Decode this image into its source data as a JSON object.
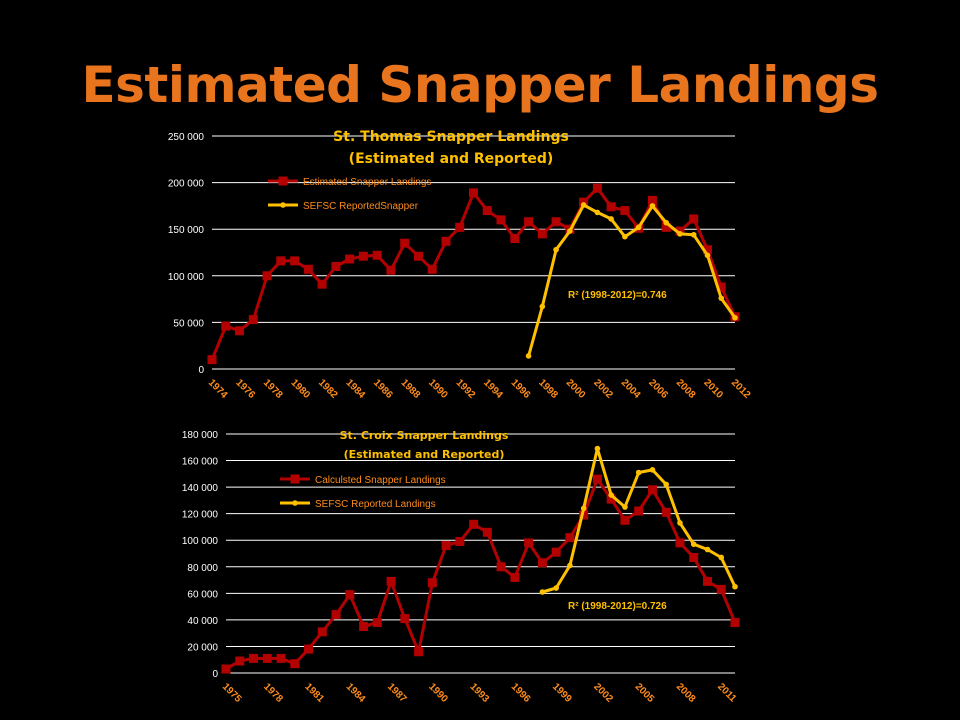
{
  "slide": {
    "title": "Estimated Snapper Landings"
  },
  "chart_data": [
    {
      "type": "line",
      "title": "St. Thomas Snapper Landings",
      "subtitle": "(Estimated and Reported)",
      "annotation": "R² (1998-2012)=0.746",
      "ylim": [
        0,
        250000
      ],
      "yticks": [
        "0",
        "50 000",
        "100 000",
        "150 000",
        "200 000",
        "250 000"
      ],
      "ytick_values": [
        0,
        50000,
        100000,
        150000,
        200000,
        250000
      ],
      "xticks": [
        "1974",
        "1976",
        "1978",
        "1980",
        "1982",
        "1984",
        "1986",
        "1988",
        "1990",
        "1992",
        "1994",
        "1996",
        "1998",
        "2000",
        "2002",
        "2004",
        "2006",
        "2008",
        "2010",
        "2012"
      ],
      "x_start": 1974,
      "x_end": 2012,
      "legend_position": "top-left",
      "grid": true,
      "series": [
        {
          "name": "Estimated Snapper Landings",
          "color": "#b30000",
          "marker": "square",
          "x": [
            1974,
            1975,
            1976,
            1977,
            1978,
            1979,
            1980,
            1981,
            1982,
            1983,
            1984,
            1985,
            1986,
            1987,
            1988,
            1989,
            1990,
            1991,
            1992,
            1993,
            1994,
            1995,
            1996,
            1997,
            1998,
            1999,
            2000,
            2001,
            2002,
            2003,
            2004,
            2005,
            2006,
            2007,
            2008,
            2009,
            2010,
            2011,
            2012
          ],
          "values": [
            10000,
            46000,
            41000,
            53000,
            100000,
            116000,
            116000,
            107000,
            91000,
            110000,
            118000,
            121000,
            122000,
            106000,
            135000,
            121000,
            107000,
            137000,
            152000,
            189000,
            170000,
            160000,
            140000,
            158000,
            145000,
            158000,
            150000,
            179000,
            194000,
            174000,
            170000,
            151000,
            181000,
            152000,
            148000,
            161000,
            128000,
            88000,
            56000
          ]
        },
        {
          "name": "SEFSC ReportedSnapper",
          "color": "#ffc000",
          "marker": "circle",
          "x": [
            1997,
            1998,
            1999,
            2000,
            2001,
            2002,
            2003,
            2004,
            2005,
            2006,
            2007,
            2008,
            2009,
            2010,
            2011,
            2012
          ],
          "values": [
            14000,
            67000,
            128000,
            148000,
            176000,
            168000,
            161000,
            142000,
            152000,
            175000,
            157000,
            145000,
            144000,
            122000,
            76000,
            55000
          ]
        }
      ]
    },
    {
      "type": "line",
      "title": "St. Croix Snapper Landings",
      "subtitle": "(Estimated and Reported)",
      "annotation": "R² (1998-2012)=0.726",
      "ylim": [
        0,
        180000
      ],
      "yticks": [
        "0",
        "20 000",
        "40 000",
        "60 000",
        "80 000",
        "100 000",
        "120 000",
        "140 000",
        "160 000",
        "180 000"
      ],
      "ytick_values": [
        0,
        20000,
        40000,
        60000,
        80000,
        100000,
        120000,
        140000,
        160000,
        180000
      ],
      "xticks": [
        "1975",
        "1978",
        "1981",
        "1984",
        "1987",
        "1990",
        "1993",
        "1996",
        "1999",
        "2002",
        "2005",
        "2008",
        "2011"
      ],
      "x_start": 1975,
      "x_end": 2012,
      "legend_position": "top-left",
      "grid": true,
      "series": [
        {
          "name": "Calculsted Snapper Landings",
          "color": "#b30000",
          "marker": "square",
          "x": [
            1975,
            1976,
            1977,
            1978,
            1979,
            1980,
            1981,
            1982,
            1983,
            1984,
            1985,
            1986,
            1987,
            1988,
            1989,
            1990,
            1991,
            1992,
            1993,
            1994,
            1995,
            1996,
            1997,
            1998,
            1999,
            2000,
            2001,
            2002,
            2003,
            2004,
            2005,
            2006,
            2007,
            2008,
            2009,
            2010,
            2011,
            2012
          ],
          "values": [
            3000,
            9000,
            11000,
            11000,
            11000,
            7000,
            18000,
            31000,
            44000,
            59000,
            35000,
            38000,
            69000,
            41000,
            16000,
            68000,
            96000,
            99000,
            112000,
            106000,
            80000,
            72000,
            98000,
            83000,
            91000,
            102000,
            119000,
            146000,
            131000,
            115000,
            122000,
            138000,
            121000,
            98000,
            87000,
            69000,
            63000,
            38000
          ]
        },
        {
          "name": "SEFSC Reported Landings",
          "color": "#ffc000",
          "marker": "circle",
          "x": [
            1998,
            1999,
            2000,
            2001,
            2002,
            2003,
            2004,
            2005,
            2006,
            2007,
            2008,
            2009,
            2010,
            2011,
            2012
          ],
          "values": [
            61000,
            64000,
            81000,
            124000,
            169000,
            134000,
            125000,
            151000,
            153000,
            142000,
            113000,
            97000,
            93000,
            87000,
            65000
          ]
        }
      ]
    }
  ]
}
